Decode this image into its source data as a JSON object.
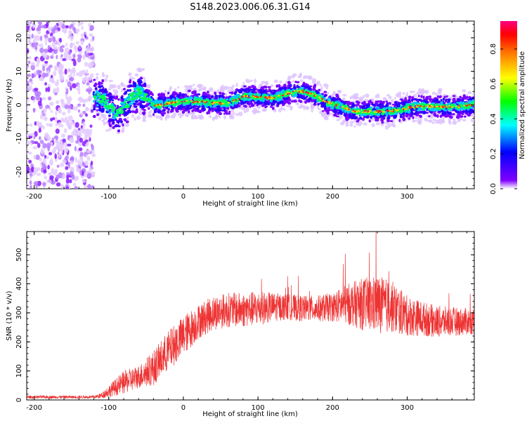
{
  "title": "S148.2023.006.06.31.G14",
  "chart_data": [
    {
      "type": "heatmap",
      "xlabel": "Height of straight line (km)",
      "ylabel": "Frequency (Hz)",
      "xlim": [
        -210,
        390
      ],
      "ylim": [
        -25,
        25
      ],
      "x_ticks": [
        -200,
        -100,
        0,
        100,
        200,
        300
      ],
      "y_ticks": [
        -20,
        -10,
        0,
        10,
        20
      ],
      "colorbar": {
        "label": "Normalized spectral amplitude",
        "range": [
          0,
          0.96
        ],
        "ticks": [
          0.0,
          0.2,
          0.4,
          0.6,
          0.8
        ],
        "colormap": [
          "#ffffff",
          "#8000ff",
          "#0000ff",
          "#00ffff",
          "#00ff00",
          "#ffff00",
          "#ff8000",
          "#ff0000",
          "#ff0080"
        ]
      },
      "ridge": {
        "x": [
          -110,
          -100,
          -90,
          -80,
          -70,
          -60,
          -50,
          -40,
          -30,
          -20,
          0,
          20,
          40,
          60,
          80,
          100,
          120,
          140,
          150,
          160,
          175,
          190,
          210,
          230,
          250,
          270,
          290,
          310,
          330,
          350,
          370,
          390
        ],
        "y": [
          2,
          0,
          -3,
          -1,
          2,
          4,
          2,
          0,
          0,
          0.5,
          1,
          1,
          0.5,
          0.5,
          2.5,
          2.5,
          2,
          3.5,
          4,
          4,
          3,
          1,
          -0.5,
          -2,
          -2,
          -2,
          -1.5,
          -0.5,
          -0.5,
          -0.5,
          -0.5,
          0
        ]
      },
      "grid": false
    },
    {
      "type": "line",
      "xlabel": "Height of straight line (km)",
      "ylabel": "SNR (10 * v/v)",
      "xlim": [
        -210,
        390
      ],
      "ylim": [
        0,
        580
      ],
      "x_ticks": [
        -200,
        -100,
        0,
        100,
        200,
        300
      ],
      "y_ticks": [
        0,
        100,
        200,
        300,
        400,
        500
      ],
      "series": [
        {
          "color": "#ee3333",
          "envelope_x": [
            -210,
            -120,
            -110,
            -100,
            -80,
            -60,
            -40,
            -20,
            0,
            20,
            40,
            60,
            80,
            100,
            120,
            140,
            160,
            180,
            200,
            220,
            240,
            260,
            280,
            300,
            320,
            340,
            360,
            390
          ],
          "envelope_y": [
            10,
            10,
            15,
            30,
            60,
            80,
            110,
            170,
            220,
            270,
            300,
            310,
            310,
            315,
            320,
            320,
            315,
            315,
            320,
            330,
            330,
            330,
            320,
            290,
            280,
            270,
            270,
            270
          ],
          "noise": [
            5,
            5,
            10,
            20,
            40,
            40,
            60,
            70,
            70,
            60,
            60,
            60,
            60,
            60,
            50,
            45,
            45,
            45,
            50,
            70,
            90,
            100,
            90,
            70,
            60,
            55,
            50,
            45
          ]
        }
      ],
      "grid": false
    }
  ]
}
